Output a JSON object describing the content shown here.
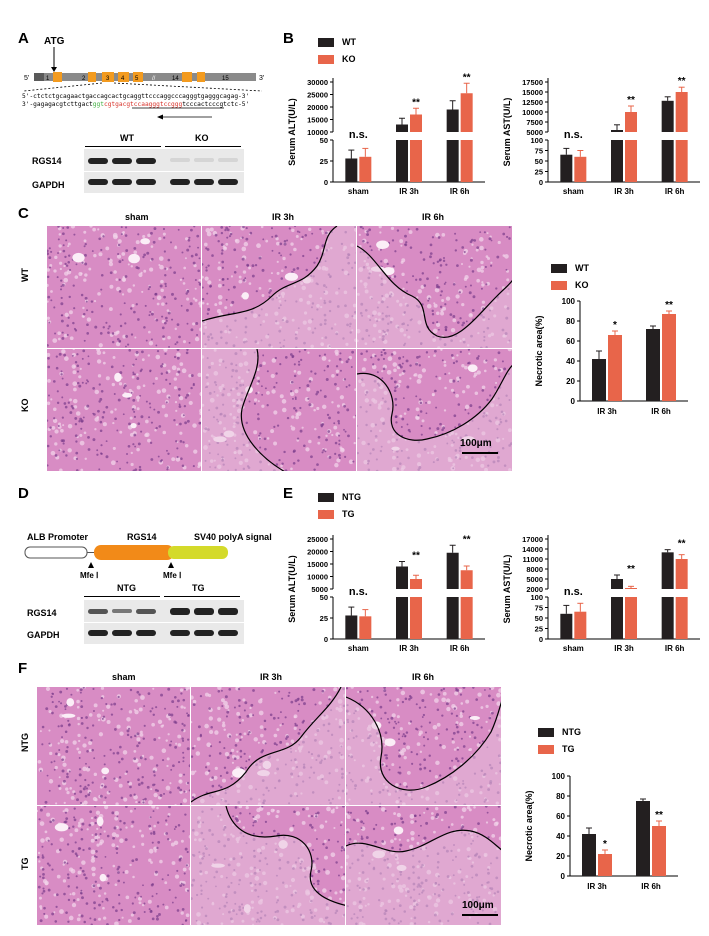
{
  "panels": {
    "A": "A",
    "B": "B",
    "C": "C",
    "D": "D",
    "E": "E",
    "F": "F"
  },
  "colors": {
    "wt_bar": "#231f20",
    "ko_bar": "#e8654a",
    "exon": "#f39b1f",
    "gene_line": "#8a8a8a",
    "he_pink": "#d88cc4",
    "albumin": "#f28a18",
    "polyA": "#d4da2a",
    "green_seq": "#3fae3f",
    "red_seq": "#d8322a"
  },
  "panelA": {
    "atg": "ATG",
    "five_prime": "5'",
    "three_prime": "3'",
    "exons": [
      "1",
      "2",
      "3",
      "4",
      "5",
      "14",
      "15"
    ],
    "break_mark": "//",
    "seq_top": "5'-ctctctgcagaactgaccagcactgcaggttcccaggcccagggtgagggcagag-3'",
    "seq_bottom_prefix": "3'-gagagacgtcttgact",
    "seq_bottom_green": "ggt",
    "seq_bottom_red": "cgtgacgtccaagggtccggg",
    "seq_bottom_suffix": "tcccactcccgtctc-5'",
    "blot_groups": [
      "WT",
      "KO"
    ],
    "blot_rows": [
      "RGS14",
      "GAPDH"
    ]
  },
  "panelD": {
    "promoter": "ALB Promoter",
    "gene": "RGS14",
    "polyA": "SV40 polyA signal",
    "site1": "Mfe Ⅰ",
    "site2": "Mfe Ⅰ",
    "blot_groups": [
      "NTG",
      "TG"
    ],
    "blot_rows": [
      "RGS14",
      "GAPDH"
    ]
  },
  "histoC": {
    "cols": [
      "sham",
      "IR 3h",
      "IR 6h"
    ],
    "rows": [
      "WT",
      "KO"
    ],
    "scale": "100μm"
  },
  "histoF": {
    "cols": [
      "sham",
      "IR 3h",
      "IR 6h"
    ],
    "rows": [
      "NTG",
      "TG"
    ],
    "scale": "100μm"
  },
  "chart_data": [
    {
      "id": "B_ALT",
      "type": "bar",
      "ylabel": "Serum ALT(U/L)",
      "categories": [
        "sham",
        "IR 3h",
        "IR 6h"
      ],
      "legend": [
        "WT",
        "KO"
      ],
      "series": [
        {
          "name": "WT",
          "values": [
            28,
            13000,
            19000
          ],
          "err": [
            10,
            2500,
            3500
          ]
        },
        {
          "name": "KO",
          "values": [
            30,
            17000,
            25500
          ],
          "err": [
            10,
            2500,
            4000
          ]
        }
      ],
      "low_ticks": [
        "0",
        "25",
        "50"
      ],
      "high_ticks": [
        "10000",
        "15000",
        "20000",
        "25000",
        "30000"
      ],
      "low_range": [
        0,
        50
      ],
      "high_range": [
        10000,
        30000
      ],
      "annotations": [
        "n.s.",
        "**",
        "**"
      ]
    },
    {
      "id": "B_AST",
      "type": "bar",
      "ylabel": "Serum AST(U/L)",
      "categories": [
        "sham",
        "IR 3h",
        "IR 6h"
      ],
      "legend": [
        "WT",
        "KO"
      ],
      "series": [
        {
          "name": "WT",
          "values": [
            65,
            5500,
            12800
          ],
          "err": [
            15,
            1300,
            1000
          ]
        },
        {
          "name": "KO",
          "values": [
            60,
            10000,
            15000
          ],
          "err": [
            15,
            1500,
            1200
          ]
        }
      ],
      "low_ticks": [
        "0",
        "25",
        "50",
        "75",
        "100"
      ],
      "high_ticks": [
        "5000",
        "7500",
        "10000",
        "12500",
        "15000",
        "17500"
      ],
      "low_range": [
        0,
        100
      ],
      "high_range": [
        5000,
        17500
      ],
      "annotations": [
        "n.s.",
        "**",
        "**"
      ]
    },
    {
      "id": "C_necrotic",
      "type": "bar",
      "ylabel": "Necrotic area(%)",
      "categories": [
        "IR 3h",
        "IR 6h"
      ],
      "legend": [
        "WT",
        "KO"
      ],
      "series": [
        {
          "name": "WT",
          "values": [
            42,
            72
          ],
          "err": [
            8,
            3
          ]
        },
        {
          "name": "KO",
          "values": [
            66,
            87
          ],
          "err": [
            4,
            3
          ]
        }
      ],
      "ticks": [
        "0",
        "20",
        "40",
        "60",
        "80",
        "100"
      ],
      "ylim": [
        0,
        100
      ],
      "annotations": [
        "*",
        "**"
      ]
    },
    {
      "id": "E_ALT",
      "type": "bar",
      "ylabel": "Serum ALT(U/L)",
      "categories": [
        "sham",
        "IR 3h",
        "IR 6h"
      ],
      "legend": [
        "NTG",
        "TG"
      ],
      "series": [
        {
          "name": "NTG",
          "values": [
            28,
            14000,
            19500
          ],
          "err": [
            10,
            2000,
            3000
          ]
        },
        {
          "name": "TG",
          "values": [
            27,
            9000,
            12500
          ],
          "err": [
            8,
            1500,
            1700
          ]
        }
      ],
      "low_ticks": [
        "0",
        "25",
        "50"
      ],
      "high_ticks": [
        "5000",
        "10000",
        "15000",
        "20000",
        "25000"
      ],
      "low_range": [
        0,
        50
      ],
      "high_range": [
        5000,
        25000
      ],
      "annotations": [
        "n.s.",
        "**",
        "**"
      ]
    },
    {
      "id": "E_AST",
      "type": "bar",
      "ylabel": "Serum AST(U/L)",
      "categories": [
        "sham",
        "IR 3h",
        "IR 6h"
      ],
      "legend": [
        "NTG",
        "TG"
      ],
      "series": [
        {
          "name": "NTG",
          "values": [
            60,
            5000,
            13000
          ],
          "err": [
            20,
            1200,
            800
          ]
        },
        {
          "name": "TG",
          "values": [
            65,
            2300,
            11000
          ],
          "err": [
            20,
            500,
            1300
          ]
        }
      ],
      "low_ticks": [
        "0",
        "25",
        "50",
        "75",
        "100"
      ],
      "high_ticks": [
        "2000",
        "5000",
        "8000",
        "11000",
        "14000",
        "17000"
      ],
      "low_range": [
        0,
        100
      ],
      "high_range": [
        2000,
        17000
      ],
      "annotations": [
        "n.s.",
        "**",
        "**"
      ]
    },
    {
      "id": "F_necrotic",
      "type": "bar",
      "ylabel": "Necrotic area(%)",
      "categories": [
        "IR 3h",
        "IR 6h"
      ],
      "legend": [
        "NTG",
        "TG"
      ],
      "series": [
        {
          "name": "NTG",
          "values": [
            42,
            75
          ],
          "err": [
            6,
            2
          ]
        },
        {
          "name": "TG",
          "values": [
            22,
            50
          ],
          "err": [
            4,
            5
          ]
        }
      ],
      "ticks": [
        "0",
        "20",
        "40",
        "60",
        "80",
        "100"
      ],
      "ylim": [
        0,
        100
      ],
      "annotations": [
        "*",
        "**"
      ]
    }
  ]
}
